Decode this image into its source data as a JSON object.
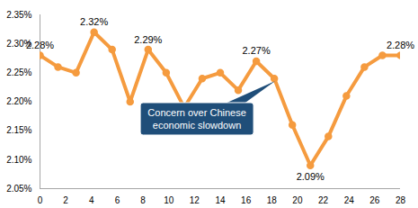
{
  "chart_data": {
    "type": "line",
    "x": [
      0,
      1.4,
      2.8,
      4.2,
      5.6,
      7,
      8.4,
      9.8,
      11.2,
      12.6,
      14,
      15.4,
      16.8,
      18.2,
      19.6,
      21,
      22.4,
      23.8,
      25.2,
      26.6,
      28
    ],
    "values": [
      2.28,
      2.26,
      2.25,
      2.32,
      2.29,
      2.2,
      2.29,
      2.25,
      2.19,
      2.24,
      2.25,
      2.22,
      2.27,
      2.24,
      2.16,
      2.09,
      2.14,
      2.21,
      2.26,
      2.28,
      2.28
    ],
    "value_labels": [
      "2.28%",
      null,
      null,
      "2.32%",
      null,
      null,
      "2.29%",
      null,
      null,
      null,
      null,
      null,
      "2.27%",
      null,
      null,
      "2.09%",
      null,
      null,
      null,
      null,
      "2.28%"
    ],
    "data_labels": true,
    "color": "#f59b3f",
    "marker": "circle",
    "xlim": [
      0,
      28
    ],
    "xticks": [
      0,
      2,
      4,
      6,
      8,
      10,
      12,
      14,
      16,
      18,
      20,
      22,
      24,
      26,
      28
    ],
    "ylim": [
      2.05,
      2.35
    ],
    "yticks": [
      {
        "value": 2.05,
        "label": "2.05%"
      },
      {
        "value": 2.1,
        "label": "2.10%"
      },
      {
        "value": 2.15,
        "label": "2.15%"
      },
      {
        "value": 2.2,
        "label": "2.20%"
      },
      {
        "value": 2.25,
        "label": "2.25%"
      },
      {
        "value": 2.3,
        "label": "2.30%"
      },
      {
        "value": 2.35,
        "label": "2.35%"
      }
    ],
    "grid": false,
    "annotations": [
      {
        "text": "Concern over Chinese economic slowdown",
        "x": 18.3,
        "y": 2.235
      }
    ]
  }
}
